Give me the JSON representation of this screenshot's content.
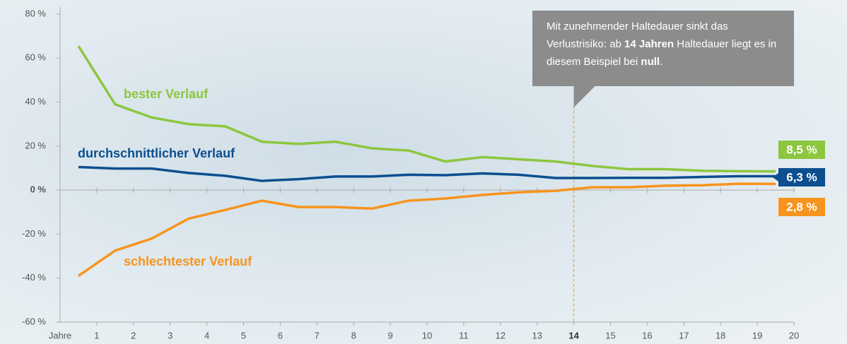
{
  "chart_data": {
    "type": "line",
    "x_label": "Jahre",
    "x": [
      0.5,
      1.5,
      2.5,
      3.5,
      4.5,
      5.5,
      6.5,
      7.5,
      8.5,
      9.5,
      10.5,
      11.5,
      12.5,
      13.5,
      14.5,
      15.5,
      16.5,
      17.5,
      18.5,
      19.5
    ],
    "xlim": [
      0,
      20
    ],
    "xticks": [
      1,
      2,
      3,
      4,
      5,
      6,
      7,
      8,
      9,
      10,
      11,
      12,
      13,
      14,
      15,
      16,
      17,
      18,
      19,
      20
    ],
    "bold_xtick": 14,
    "ylim": [
      -60,
      80
    ],
    "yticks": [
      {
        "value": -60,
        "label": "-60 %"
      },
      {
        "value": -40,
        "label": "-40 %"
      },
      {
        "value": -20,
        "label": "-20 %"
      },
      {
        "value": 0,
        "label": "0 %"
      },
      {
        "value": 20,
        "label": "20 %"
      },
      {
        "value": 40,
        "label": "40 %"
      },
      {
        "value": 60,
        "label": "60 %"
      },
      {
        "value": 80,
        "label": "80 %"
      }
    ],
    "series": [
      {
        "name": "bester Verlauf",
        "color": "#8dc63f",
        "values": [
          65.5,
          39,
          33,
          30,
          29,
          22,
          21,
          22,
          19,
          18,
          13,
          15,
          14,
          13,
          11,
          9.5,
          9.5,
          8.8,
          8.6,
          8.5
        ],
        "value_labels": [
          null,
          null,
          null,
          null,
          null,
          null,
          null,
          null,
          null,
          null,
          null,
          null,
          null,
          null,
          null,
          null,
          null,
          null,
          null,
          "8,5 %"
        ]
      },
      {
        "name": "durchschnittlicher Verlauf",
        "color": "#0b4f8f",
        "values": [
          10.5,
          9.8,
          9.8,
          7.8,
          6.5,
          4.2,
          5,
          6.2,
          6.2,
          7,
          6.8,
          7.6,
          7,
          5.5,
          5.5,
          5.6,
          5.6,
          6,
          6.3,
          6.3
        ],
        "value_labels": [
          null,
          null,
          null,
          null,
          null,
          null,
          null,
          null,
          null,
          null,
          null,
          null,
          null,
          null,
          null,
          null,
          null,
          null,
          null,
          "6,3 %"
        ]
      },
      {
        "name": "schlechtester Verlauf",
        "color": "#f7941d",
        "values": [
          -39,
          -27.5,
          -22,
          -13,
          -9,
          -4.8,
          -7.7,
          -7.7,
          -8.4,
          -4.8,
          -3.8,
          -2.2,
          -1,
          -0.3,
          1.3,
          1.3,
          2,
          2.2,
          2.9,
          2.8
        ],
        "value_labels": [
          null,
          null,
          null,
          null,
          null,
          null,
          null,
          null,
          null,
          null,
          null,
          null,
          null,
          null,
          null,
          null,
          null,
          null,
          null,
          "2,8 %"
        ]
      }
    ],
    "annotation": {
      "x": 14,
      "text": [
        "Mit zunehmender Haltedauer sinkt das Verlustrisiko: ab ",
        "14 Jahren",
        " Haltedauer liegt es in diesem Beispiel bei ",
        "null",
        "."
      ]
    }
  }
}
